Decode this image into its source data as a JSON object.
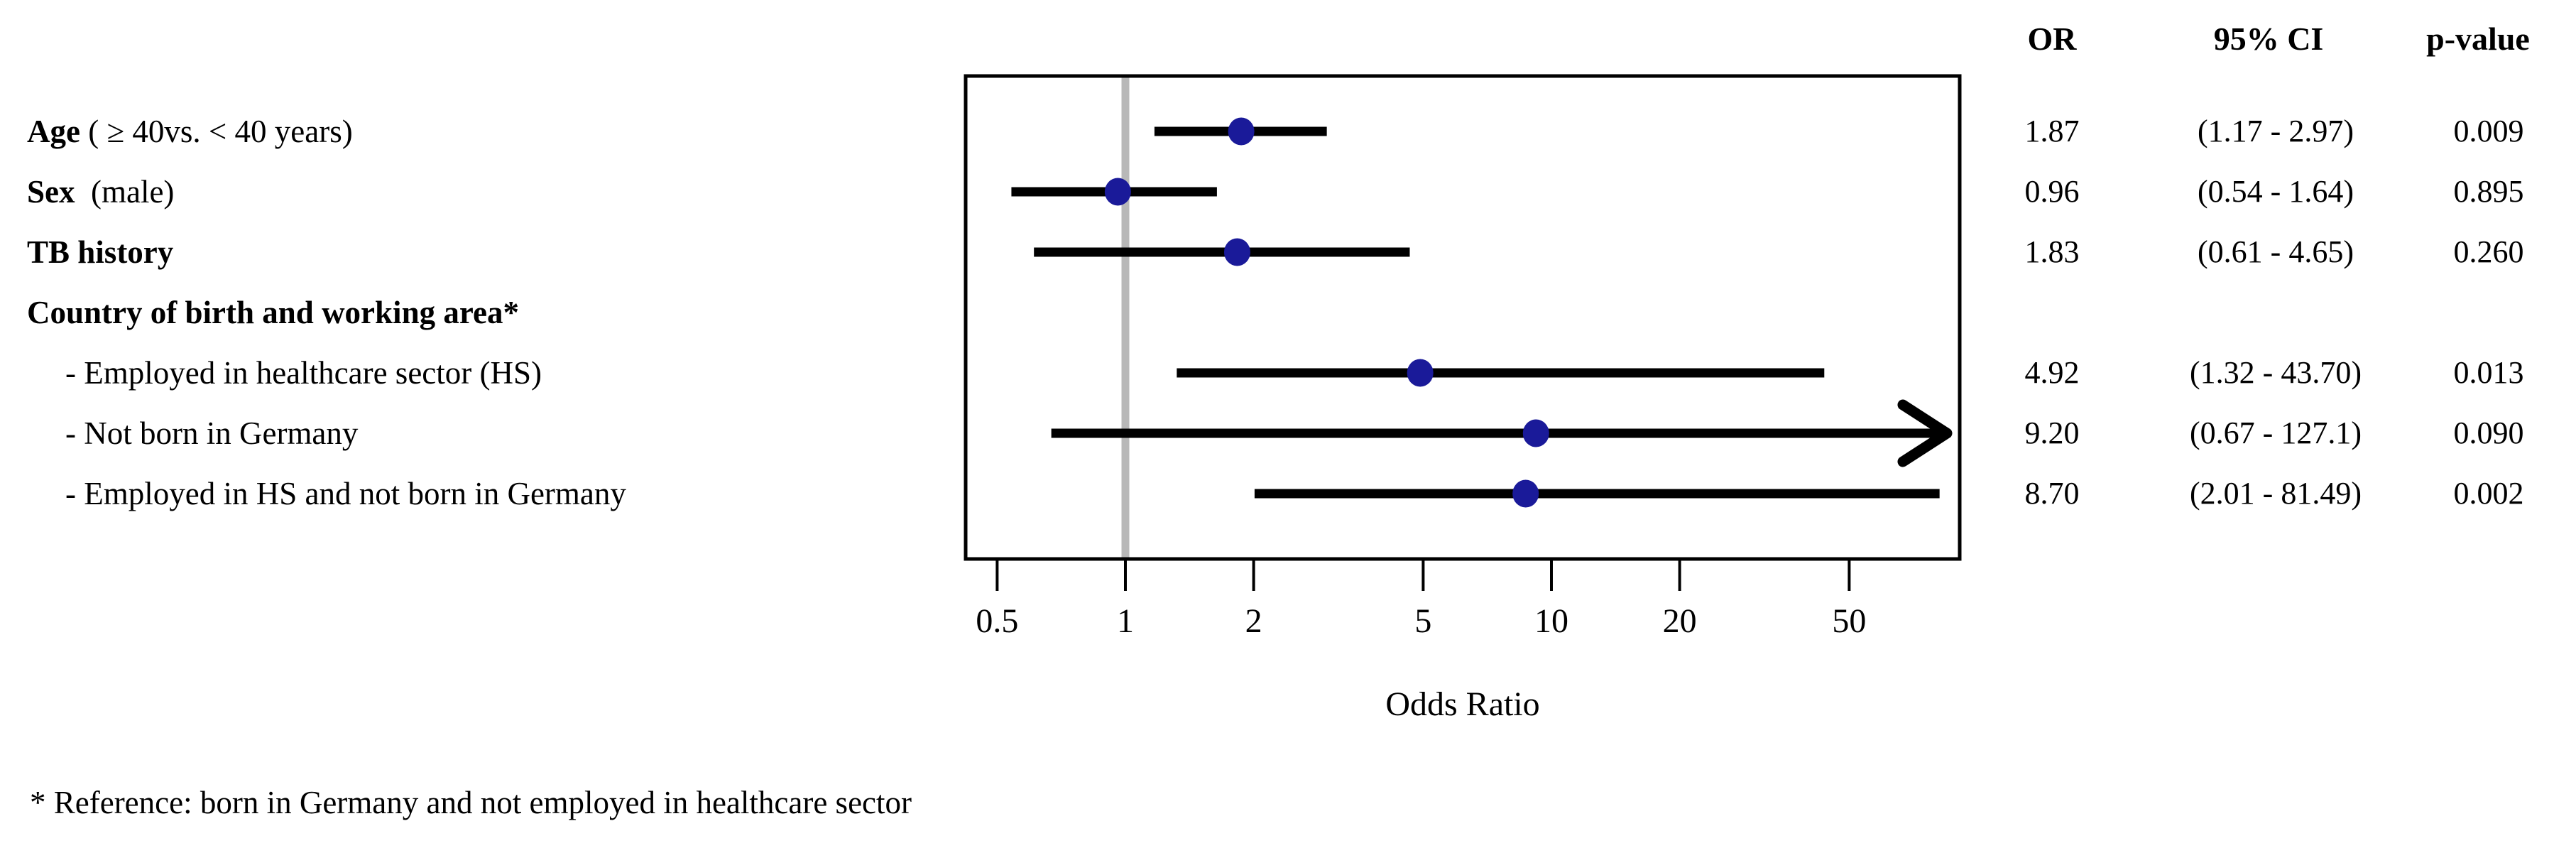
{
  "chart_data": {
    "type": "forest",
    "xlabel": "Odds Ratio",
    "x_scale": "log",
    "x_ticks": [
      "0.5",
      "1",
      "2",
      "5",
      "10",
      "20",
      "50"
    ],
    "x_tick_values": [
      0.5,
      1,
      2,
      5,
      10,
      20,
      50
    ],
    "x_range": [
      0.42,
      92
    ],
    "reference_line": 1,
    "legend_position": "right",
    "grid": false,
    "columns": [
      "OR",
      "95% CI",
      "p-value"
    ],
    "colors": {
      "marker": "#1a1a99",
      "reference_line": "#b8b8b8",
      "line": "#000000",
      "box_border": "#000000"
    },
    "rows": [
      {
        "label_bold": "Age",
        "label_rest": " ( ≥ 40vs. < 40 years)",
        "indent": false,
        "group": false,
        "or": 1.87,
        "ci_low": 1.17,
        "ci_high": 2.97,
        "arrow": false,
        "or_text": "1.87",
        "ci_text": "(1.17 - 2.97)",
        "p_text": "0.009"
      },
      {
        "label_bold": "Sex",
        "label_rest": "  (male)",
        "indent": false,
        "group": false,
        "or": 0.96,
        "ci_low": 0.54,
        "ci_high": 1.64,
        "arrow": false,
        "or_text": "0.96",
        "ci_text": "(0.54 - 1.64)",
        "p_text": "0.895"
      },
      {
        "label_bold": "TB history",
        "label_rest": "",
        "indent": false,
        "group": false,
        "or": 1.83,
        "ci_low": 0.61,
        "ci_high": 4.65,
        "arrow": false,
        "or_text": "1.83",
        "ci_text": "(0.61 - 4.65)",
        "p_text": "0.260"
      },
      {
        "label_bold": "Country of birth and working area*",
        "label_rest": "",
        "indent": false,
        "group": true
      },
      {
        "label_bold": "",
        "label_rest": "- Employed in healthcare sector (HS)",
        "indent": true,
        "group": false,
        "or": 4.92,
        "ci_low": 1.32,
        "ci_high": 43.7,
        "arrow": false,
        "or_text": "4.92",
        "ci_text": "(1.32 - 43.70)",
        "p_text": "0.013"
      },
      {
        "label_bold": "",
        "label_rest": "- Not born in Germany",
        "indent": true,
        "group": false,
        "or": 9.2,
        "ci_low": 0.67,
        "ci_high": 127.1,
        "arrow": true,
        "or_text": "9.20",
        "ci_text": "(0.67 - 127.1)",
        "p_text": "0.090"
      },
      {
        "label_bold": "",
        "label_rest": "- Employed in HS and not born in Germany",
        "indent": true,
        "group": false,
        "or": 8.7,
        "ci_low": 2.01,
        "ci_high": 81.49,
        "arrow": false,
        "or_text": "8.70",
        "ci_text": "(2.01 - 81.49)",
        "p_text": "0.002"
      }
    ],
    "footnote": "* Reference: born in Germany and not employed in healthcare sector"
  }
}
